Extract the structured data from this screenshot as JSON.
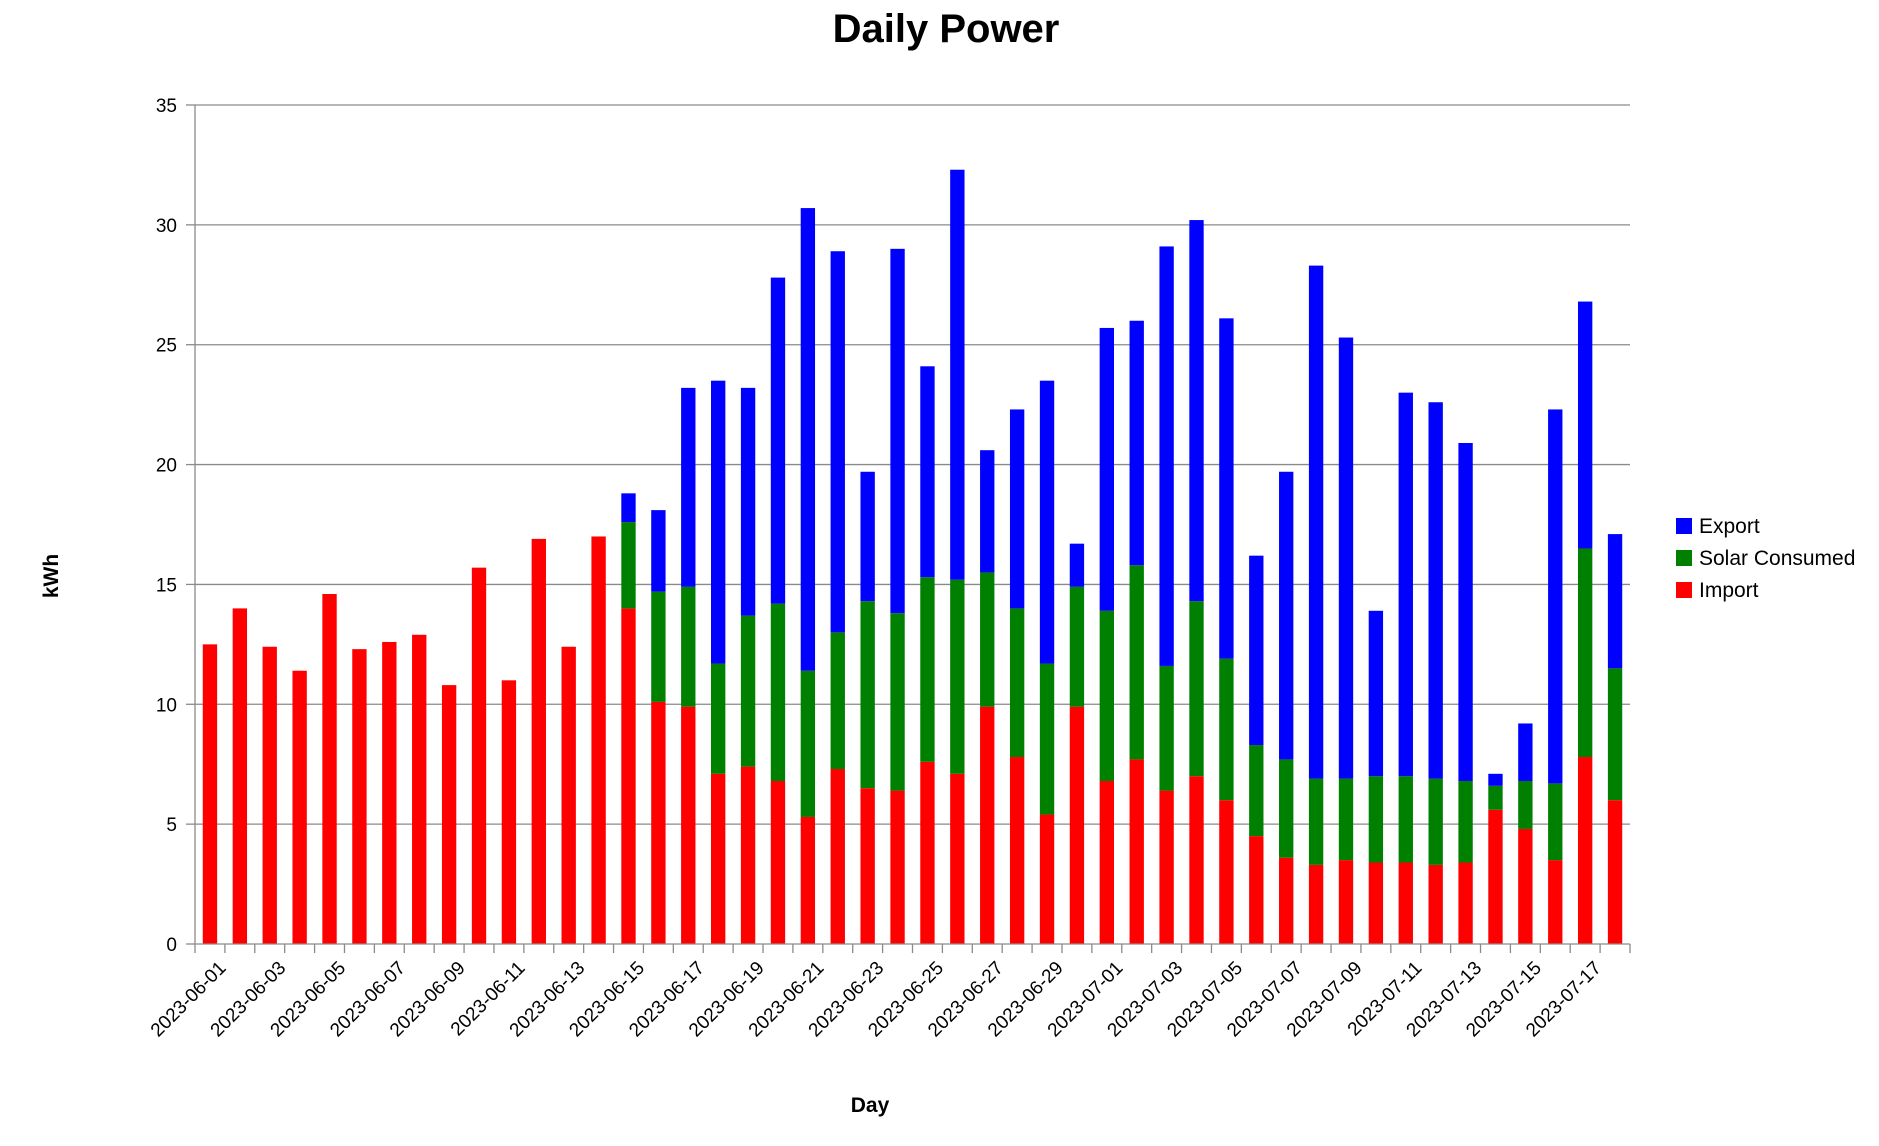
{
  "chart_data": {
    "type": "bar",
    "stacked": true,
    "title": "Daily Power",
    "xlabel": "Day",
    "ylabel": "kWh",
    "ylim": [
      0,
      35
    ],
    "yticks": [
      0,
      5,
      10,
      15,
      20,
      25,
      30,
      35
    ],
    "grid": true,
    "legend_position": "right",
    "legend_order": [
      "Export",
      "Solar Consumed",
      "Import"
    ],
    "categories": [
      "2023-06-01",
      "2023-06-02",
      "2023-06-03",
      "2023-06-04",
      "2023-06-05",
      "2023-06-06",
      "2023-06-07",
      "2023-06-08",
      "2023-06-09",
      "2023-06-10",
      "2023-06-11",
      "2023-06-12",
      "2023-06-13",
      "2023-06-14",
      "2023-06-15",
      "2023-06-16",
      "2023-06-17",
      "2023-06-18",
      "2023-06-19",
      "2023-06-20",
      "2023-06-21",
      "2023-06-22",
      "2023-06-23",
      "2023-06-24",
      "2023-06-25",
      "2023-06-26",
      "2023-06-27",
      "2023-06-28",
      "2023-06-29",
      "2023-06-30",
      "2023-07-01",
      "2023-07-02",
      "2023-07-03",
      "2023-07-04",
      "2023-07-05",
      "2023-07-06",
      "2023-07-07",
      "2023-07-08",
      "2023-07-09",
      "2023-07-10",
      "2023-07-11",
      "2023-07-12",
      "2023-07-13",
      "2023-07-14",
      "2023-07-15",
      "2023-07-16",
      "2023-07-17",
      "2023-07-18"
    ],
    "xtick_labels": [
      "2023-06-01",
      "2023-06-03",
      "2023-06-05",
      "2023-06-07",
      "2023-06-09",
      "2023-06-11",
      "2023-06-13",
      "2023-06-15",
      "2023-06-17",
      "2023-06-19",
      "2023-06-21",
      "2023-06-23",
      "2023-06-25",
      "2023-06-27",
      "2023-06-29",
      "2023-07-01",
      "2023-07-03",
      "2023-07-05",
      "2023-07-07",
      "2023-07-09",
      "2023-07-11",
      "2023-07-13",
      "2023-07-15",
      "2023-07-17"
    ],
    "series": [
      {
        "name": "Import",
        "color": "#ff0000",
        "values": [
          12.5,
          14.0,
          12.4,
          11.4,
          14.6,
          12.3,
          12.6,
          12.9,
          10.8,
          15.7,
          11.0,
          16.9,
          12.4,
          17.0,
          14.0,
          10.1,
          9.9,
          7.1,
          7.4,
          6.8,
          5.3,
          7.3,
          6.5,
          6.4,
          7.6,
          7.1,
          9.9,
          7.8,
          5.4,
          9.9,
          6.8,
          7.7,
          6.4,
          7.0,
          6.0,
          4.5,
          3.6,
          3.3,
          3.5,
          3.4,
          3.4,
          3.3,
          3.4,
          5.6,
          4.8,
          3.5,
          7.8,
          6.0
        ]
      },
      {
        "name": "Solar Consumed",
        "color": "#008000",
        "values": [
          0,
          0,
          0,
          0,
          0,
          0,
          0,
          0,
          0,
          0,
          0,
          0,
          0,
          0,
          3.6,
          4.6,
          5.0,
          4.6,
          6.3,
          7.4,
          6.1,
          5.7,
          7.8,
          7.4,
          7.7,
          8.1,
          5.6,
          6.2,
          6.3,
          5.0,
          7.1,
          8.1,
          5.2,
          7.3,
          5.9,
          3.8,
          4.1,
          3.6,
          3.4,
          3.6,
          3.6,
          3.6,
          3.4,
          1.0,
          2.0,
          3.2,
          8.7,
          5.5
        ]
      },
      {
        "name": "Export",
        "color": "#0000ff",
        "values": [
          0,
          0,
          0,
          0,
          0,
          0,
          0,
          0,
          0,
          0,
          0,
          0,
          0,
          0,
          1.2,
          3.4,
          8.3,
          11.8,
          9.5,
          13.6,
          19.3,
          15.9,
          5.4,
          15.2,
          8.8,
          17.1,
          5.1,
          8.3,
          11.8,
          1.8,
          11.8,
          10.2,
          17.5,
          15.9,
          14.2,
          7.9,
          12.0,
          21.4,
          18.4,
          6.9,
          16.0,
          15.7,
          14.1,
          0.5,
          2.4,
          15.6,
          10.3,
          5.6
        ]
      }
    ]
  }
}
